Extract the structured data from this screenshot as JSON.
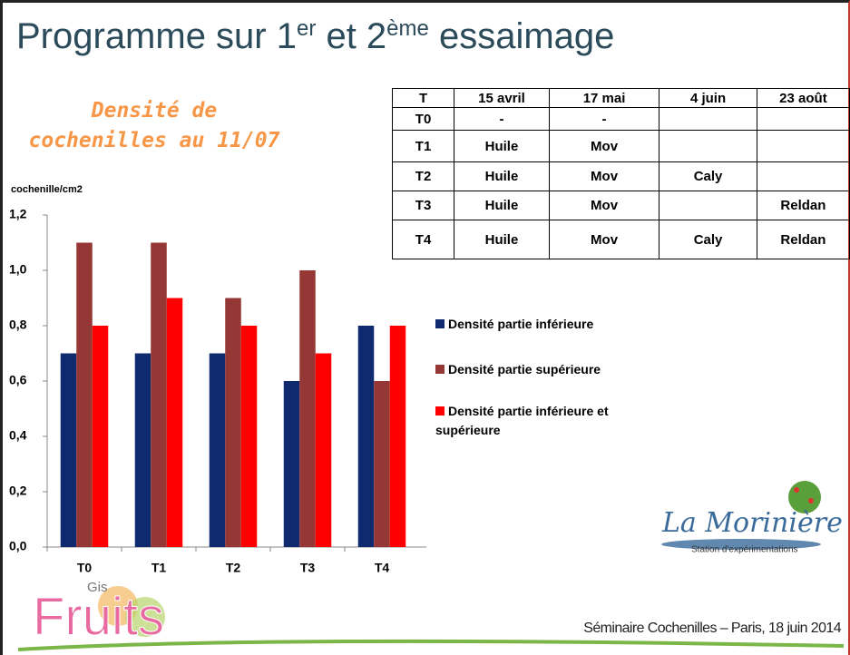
{
  "title": [
    "Programme sur 1",
    "er",
    " et 2",
    "ème",
    " essaimage"
  ],
  "chart_data": {
    "type": "bar",
    "title": [
      "Densité de",
      "cochenilles au 11/07"
    ],
    "y_label": "cochenille/cm2",
    "categories": [
      "T0",
      "T1",
      "T2",
      "T3",
      "T4"
    ],
    "series": [
      {
        "name": "Densité partie inférieure",
        "color": "#0f2a6e",
        "values": [
          0.7,
          0.7,
          0.7,
          0.6,
          0.8
        ]
      },
      {
        "name": "Densité partie supérieure",
        "color": "#953735",
        "values": [
          1.1,
          1.1,
          0.9,
          1.0,
          0.6
        ]
      },
      {
        "name": "Densité partie inférieure et supérieure",
        "color": "#ff0000",
        "values": [
          0.8,
          0.9,
          0.8,
          0.7,
          0.8
        ]
      }
    ],
    "ylim": [
      0,
      1.2
    ],
    "yticks": [
      {
        "value": 0,
        "label": "0,0"
      },
      {
        "value": 0.2,
        "label": "0,2"
      },
      {
        "value": 0.4,
        "label": "0,4"
      },
      {
        "value": 0.6,
        "label": "0,6"
      },
      {
        "value": 0.8,
        "label": "0,8"
      },
      {
        "value": 1.0,
        "label": "1,0"
      },
      {
        "value": 1.2,
        "label": "1,2"
      }
    ],
    "legend": "right"
  },
  "table": {
    "header": [
      "T",
      "15 avril",
      "17 mai",
      "4 juin",
      "23 août"
    ],
    "rows": [
      [
        "T0",
        "-",
        "-",
        null,
        null
      ],
      [
        "T1",
        "Huile",
        "Mov",
        null,
        null
      ],
      [
        "T2",
        "Huile",
        "Mov",
        "Caly",
        null
      ],
      [
        "T3",
        "Huile",
        "Mov",
        null,
        "Reldan"
      ],
      [
        "T4",
        "Huile",
        "Mov",
        "Caly",
        "Reldan"
      ]
    ]
  },
  "logos": {
    "morin": "La Morinière",
    "morin_sub": "Station d'expérimentations",
    "gis": "Gis",
    "fruits": "Fruits"
  },
  "footer": "Séminaire Cochenilles – Paris, 18 juin 2014"
}
